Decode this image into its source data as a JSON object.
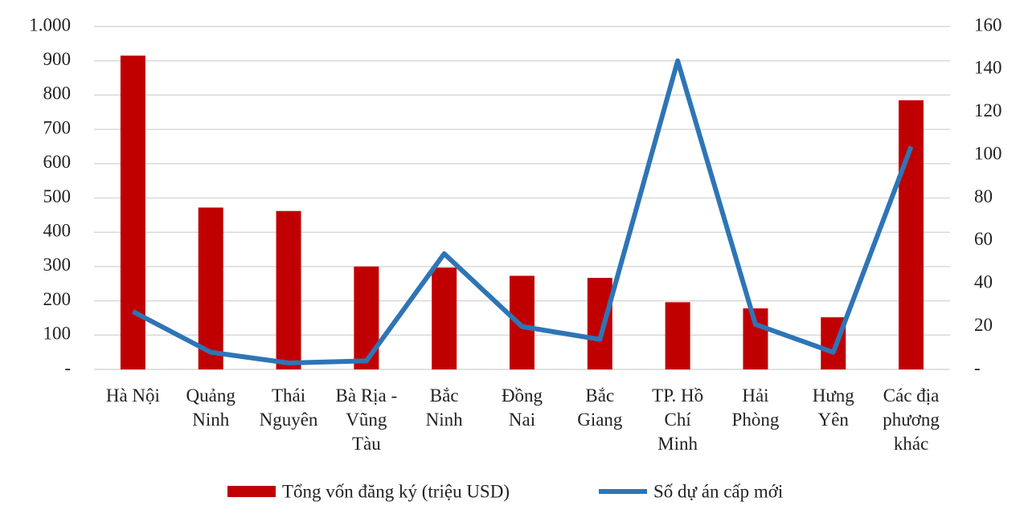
{
  "chart_data": {
    "type": "combo",
    "categories": [
      "Hà Nội",
      "Quảng\nNinh",
      "Thái\nNguyên",
      "Bà Rịa -\nVũng\nTàu",
      "Bắc\nNinh",
      "Đồng\nNai",
      "Bắc\nGiang",
      "TP. Hồ\nChí\nMinh",
      "Hải\nPhòng",
      "Hưng\nYên",
      "Các địa\nphương\nkhác"
    ],
    "series": [
      {
        "name": "Tổng vốn đăng ký (triệu USD)",
        "type": "bar",
        "color": "#c00000",
        "values": [
          915,
          472,
          462,
          300,
          297,
          273,
          267,
          196,
          178,
          152,
          785
        ]
      },
      {
        "name": "Số dự án cấp mới",
        "type": "line",
        "axis": "y2",
        "color": "#2e75b6",
        "values": [
          27,
          8,
          3,
          4,
          54,
          20,
          14,
          144,
          21,
          8,
          104
        ]
      }
    ],
    "ylim": [
      0,
      1000
    ],
    "yticks": [
      {
        "value": 0,
        "label": "-"
      },
      100,
      200,
      300,
      400,
      500,
      600,
      700,
      800,
      900,
      {
        "value": 1000,
        "label": "1.000"
      }
    ],
    "y2lim": [
      0,
      160
    ],
    "y2ticks": [
      {
        "value": 0,
        "label": "-"
      },
      20,
      40,
      60,
      80,
      100,
      120,
      140,
      160
    ],
    "grid": true,
    "legend": "bottom"
  }
}
